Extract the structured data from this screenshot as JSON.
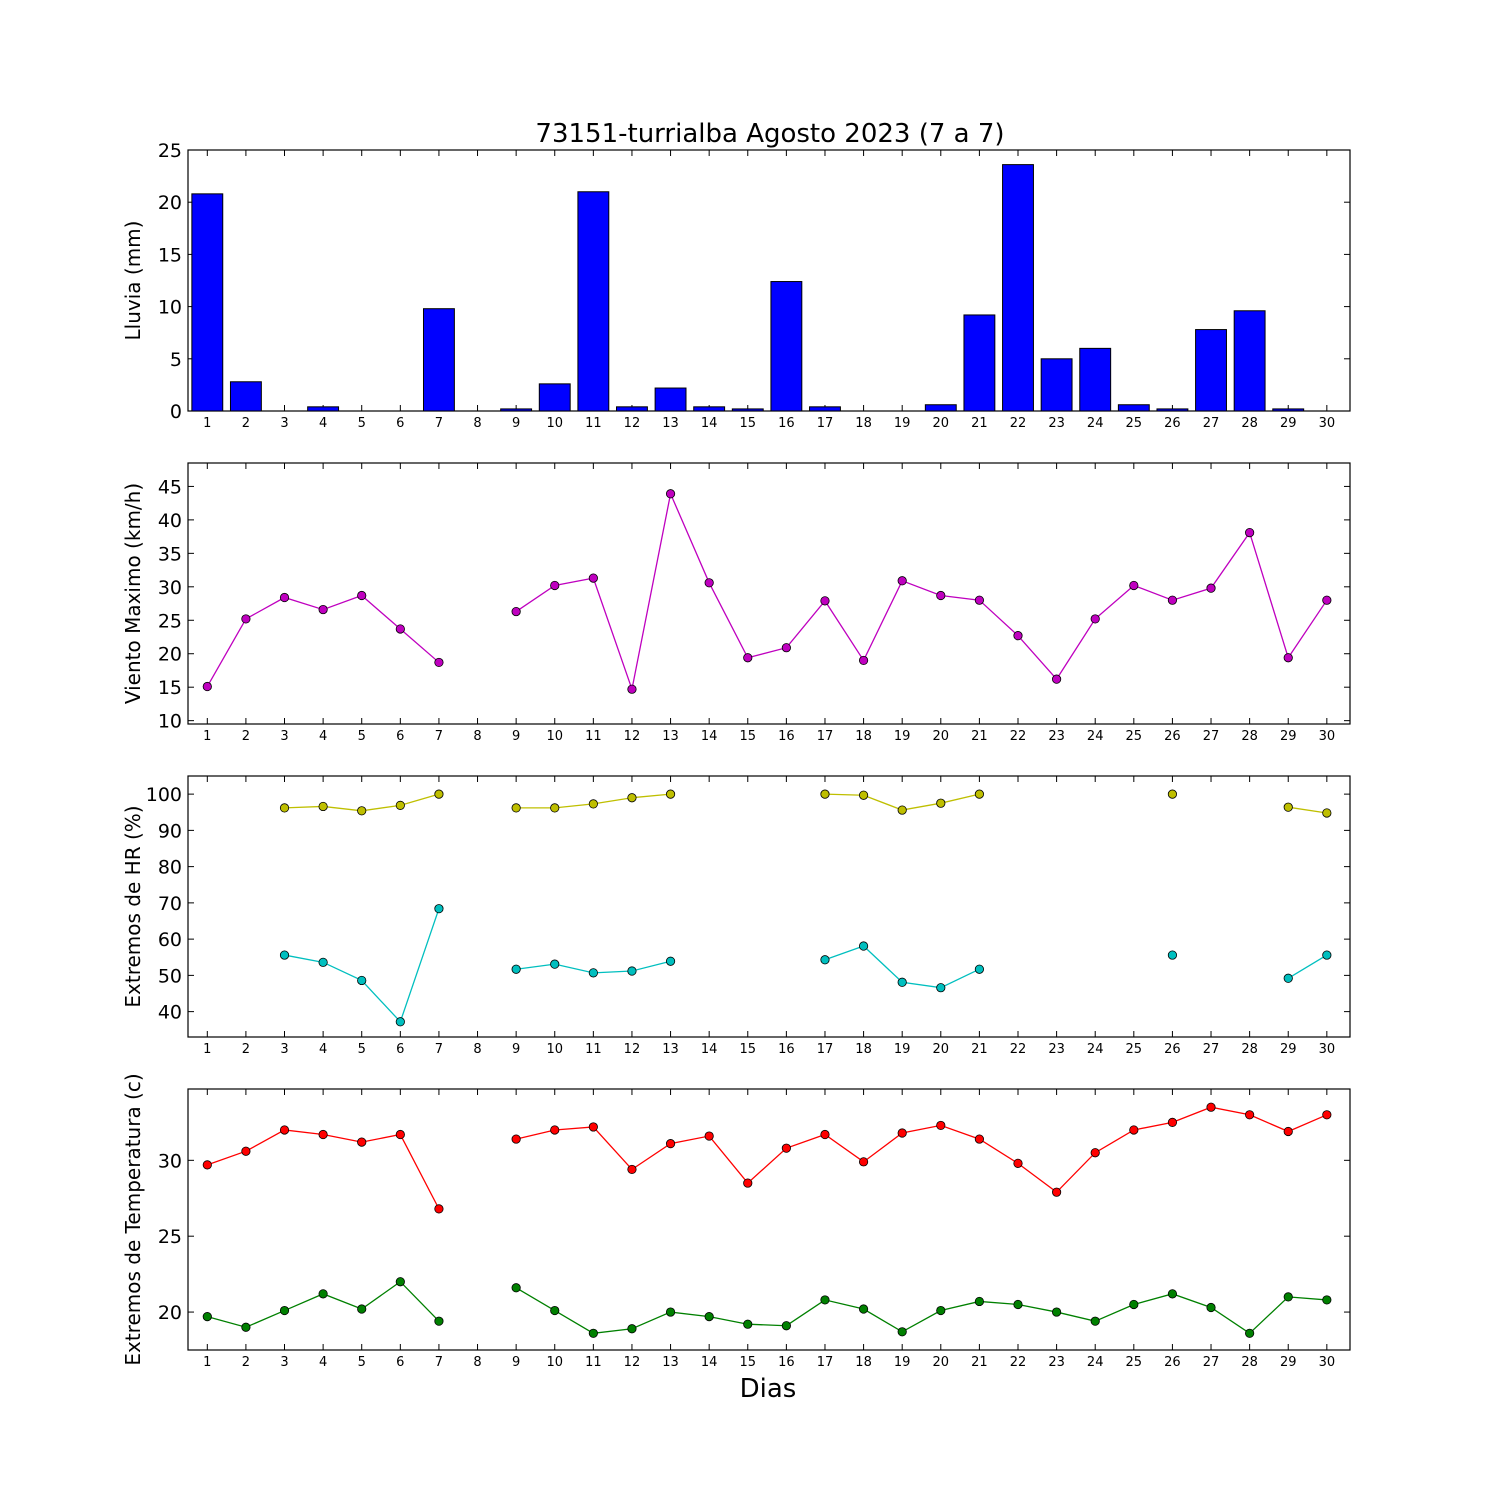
{
  "title": "73151-turrialba Agosto 2023  (7 a 7)",
  "xlabel": "Dias",
  "chart_data": [
    {
      "type": "bar",
      "ylabel": "Lluvia (mm)",
      "ylim": [
        0,
        25
      ],
      "yticks": [
        0,
        5,
        10,
        15,
        20,
        25
      ],
      "categories": [
        1,
        2,
        3,
        4,
        5,
        6,
        7,
        8,
        9,
        10,
        11,
        12,
        13,
        14,
        15,
        16,
        17,
        18,
        19,
        20,
        21,
        22,
        23,
        24,
        25,
        26,
        27,
        28,
        29,
        30
      ],
      "values": [
        20.8,
        2.8,
        0,
        0.4,
        0,
        0,
        9.8,
        null,
        0.2,
        2.6,
        21.0,
        0.4,
        2.2,
        0.4,
        0.2,
        12.4,
        0.4,
        0,
        0,
        0.6,
        9.2,
        23.6,
        5.0,
        6.0,
        0.6,
        0.2,
        7.8,
        9.6,
        0.2,
        0
      ],
      "color": "#0000ff"
    },
    {
      "type": "line",
      "ylabel": "Viento Maximo (km/h)",
      "ylim": [
        9.5,
        48.5
      ],
      "yticks": [
        10,
        15,
        20,
        25,
        30,
        35,
        40,
        45
      ],
      "x": [
        1,
        2,
        3,
        4,
        5,
        6,
        7,
        8,
        9,
        10,
        11,
        12,
        13,
        14,
        15,
        16,
        17,
        18,
        19,
        20,
        21,
        22,
        23,
        24,
        25,
        26,
        27,
        28,
        29,
        30
      ],
      "series": [
        {
          "values": [
            15.1,
            25.2,
            28.4,
            26.6,
            28.7,
            23.7,
            18.7,
            null,
            26.3,
            30.2,
            31.3,
            14.7,
            43.9,
            30.6,
            19.4,
            20.9,
            27.9,
            19.0,
            30.9,
            28.7,
            28.0,
            22.7,
            16.2,
            25.2,
            30.2,
            28.0,
            29.8,
            38.1,
            19.4,
            28.0
          ],
          "color": "#bf00bf"
        }
      ]
    },
    {
      "type": "line",
      "ylabel": "Extremos de HR (%)",
      "ylim": [
        33,
        105
      ],
      "yticks": [
        40,
        50,
        60,
        70,
        80,
        90,
        100
      ],
      "x": [
        1,
        2,
        3,
        4,
        5,
        6,
        7,
        8,
        9,
        10,
        11,
        12,
        13,
        14,
        15,
        16,
        17,
        18,
        19,
        20,
        21,
        22,
        23,
        24,
        25,
        26,
        27,
        28,
        29,
        30
      ],
      "series": [
        {
          "values": [
            null,
            null,
            96.2,
            96.6,
            95.4,
            96.9,
            100,
            null,
            96.2,
            96.2,
            97.3,
            99.0,
            100,
            null,
            null,
            null,
            100,
            99.7,
            95.6,
            97.5,
            100,
            null,
            null,
            null,
            null,
            100,
            null,
            null,
            96.4,
            94.8
          ],
          "color": "#bfbf00"
        },
        {
          "values": [
            null,
            null,
            55.6,
            53.6,
            48.6,
            37.2,
            68.4,
            null,
            51.7,
            53.1,
            50.7,
            51.2,
            53.9,
            null,
            null,
            null,
            54.3,
            58.1,
            48.1,
            46.6,
            51.7,
            null,
            null,
            null,
            null,
            55.6,
            null,
            null,
            49.2,
            55.6
          ],
          "color": "#00bfbf"
        }
      ]
    },
    {
      "type": "line",
      "ylabel": "Extremos de Temperatura (c)",
      "ylim": [
        17.5,
        34.7
      ],
      "yticks": [
        20,
        25,
        30
      ],
      "x": [
        1,
        2,
        3,
        4,
        5,
        6,
        7,
        8,
        9,
        10,
        11,
        12,
        13,
        14,
        15,
        16,
        17,
        18,
        19,
        20,
        21,
        22,
        23,
        24,
        25,
        26,
        27,
        28,
        29,
        30
      ],
      "series": [
        {
          "values": [
            29.7,
            30.6,
            32.0,
            31.7,
            31.2,
            31.7,
            26.8,
            null,
            31.4,
            32.0,
            32.2,
            29.4,
            31.1,
            31.6,
            28.5,
            30.8,
            31.7,
            29.9,
            31.8,
            32.3,
            31.4,
            29.8,
            27.9,
            30.5,
            32.0,
            32.5,
            33.5,
            33.0,
            31.9,
            33.0
          ],
          "color": "#ff0000"
        },
        {
          "values": [
            19.7,
            19.0,
            20.1,
            21.2,
            20.2,
            22.0,
            19.4,
            null,
            21.6,
            20.1,
            18.6,
            18.9,
            20.0,
            19.7,
            19.2,
            19.1,
            20.8,
            20.2,
            18.7,
            20.1,
            20.7,
            20.5,
            20.0,
            19.4,
            20.5,
            21.2,
            20.3,
            18.6,
            21.0,
            20.8
          ],
          "color": "#008000"
        }
      ]
    }
  ]
}
